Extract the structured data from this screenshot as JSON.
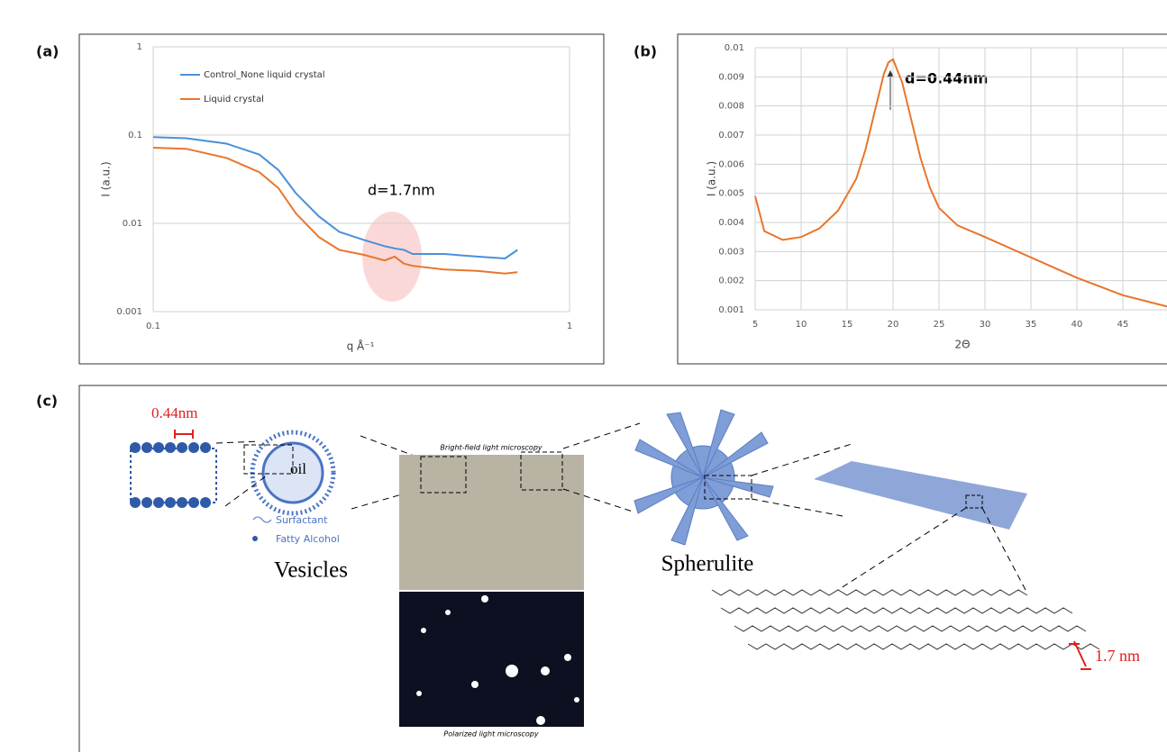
{
  "chart_data": [
    {
      "type": "line",
      "panel_label": "(a)",
      "x_label": "q Å⁻¹",
      "y_label": "I (a.u.)",
      "xscale": "log",
      "yscale": "log",
      "grid": true,
      "legend": "upper left",
      "annotation": "d=1.7nm",
      "x": [
        0.1,
        0.12,
        0.15,
        0.18,
        0.2,
        0.22,
        0.25,
        0.28,
        0.32,
        0.36,
        0.38,
        0.4,
        0.42,
        0.5,
        0.6,
        0.7,
        0.75
      ],
      "series": [
        {
          "name": "Control_None liquid crystal",
          "color": "#4a90d9",
          "values": [
            0.095,
            0.092,
            0.08,
            0.06,
            0.04,
            0.022,
            0.012,
            0.008,
            0.0065,
            0.0055,
            0.0052,
            0.005,
            0.0045,
            0.0045,
            0.0042,
            0.004,
            0.005
          ]
        },
        {
          "name": "Liquid crystal",
          "color": "#e8762c",
          "values": [
            0.072,
            0.07,
            0.055,
            0.038,
            0.025,
            0.013,
            0.007,
            0.005,
            0.0044,
            0.0038,
            0.0042,
            0.0035,
            0.0033,
            0.003,
            0.0029,
            0.0027,
            0.0028
          ]
        }
      ],
      "xlim": [
        0.1,
        1
      ],
      "xticks": [
        0.1,
        1
      ],
      "ylim": [
        0.001,
        1
      ],
      "yticks": [
        0.001,
        0.01,
        0.1,
        1
      ]
    },
    {
      "type": "line",
      "panel_label": "(b)",
      "x_label": "2Θ",
      "y_label": "I (a.u.)",
      "xscale": "linear",
      "yscale": "linear",
      "grid": true,
      "annotation": "d=0.44nm",
      "x": [
        5,
        6,
        8,
        10,
        12,
        14,
        16,
        17,
        18,
        19,
        19.5,
        20,
        21,
        22,
        23,
        24,
        25,
        27,
        30,
        35,
        40,
        45,
        50
      ],
      "series": [
        {
          "name": null,
          "color": "#e8762c",
          "values": [
            0.0049,
            0.0037,
            0.0034,
            0.0035,
            0.0038,
            0.0044,
            0.0055,
            0.0065,
            0.0078,
            0.0091,
            0.0095,
            0.0096,
            0.0088,
            0.0075,
            0.0062,
            0.0052,
            0.0045,
            0.0039,
            0.0035,
            0.0028,
            0.0021,
            0.0015,
            0.0011
          ]
        }
      ],
      "xlim": [
        5,
        50
      ],
      "xticks": [
        5,
        10,
        15,
        20,
        25,
        30,
        35,
        40,
        45
      ],
      "ylim": [
        0.001,
        0.01
      ],
      "yticks": [
        0.001,
        0.002,
        0.003,
        0.004,
        0.005,
        0.006,
        0.007,
        0.008,
        0.009,
        0.01
      ]
    }
  ],
  "diagram": {
    "panel_label": "(c)",
    "bilayer_spacing": "0.44nm",
    "oil": "oil",
    "legend": [
      "Surfactant",
      "Fatty Alcohol"
    ],
    "vesicles": "Vesicles",
    "bright_field": "Bright-field light microscopy",
    "polarized": "Polarized light microscopy",
    "spherulite": "Spherulite",
    "layer_spacing": "1.7 nm"
  }
}
